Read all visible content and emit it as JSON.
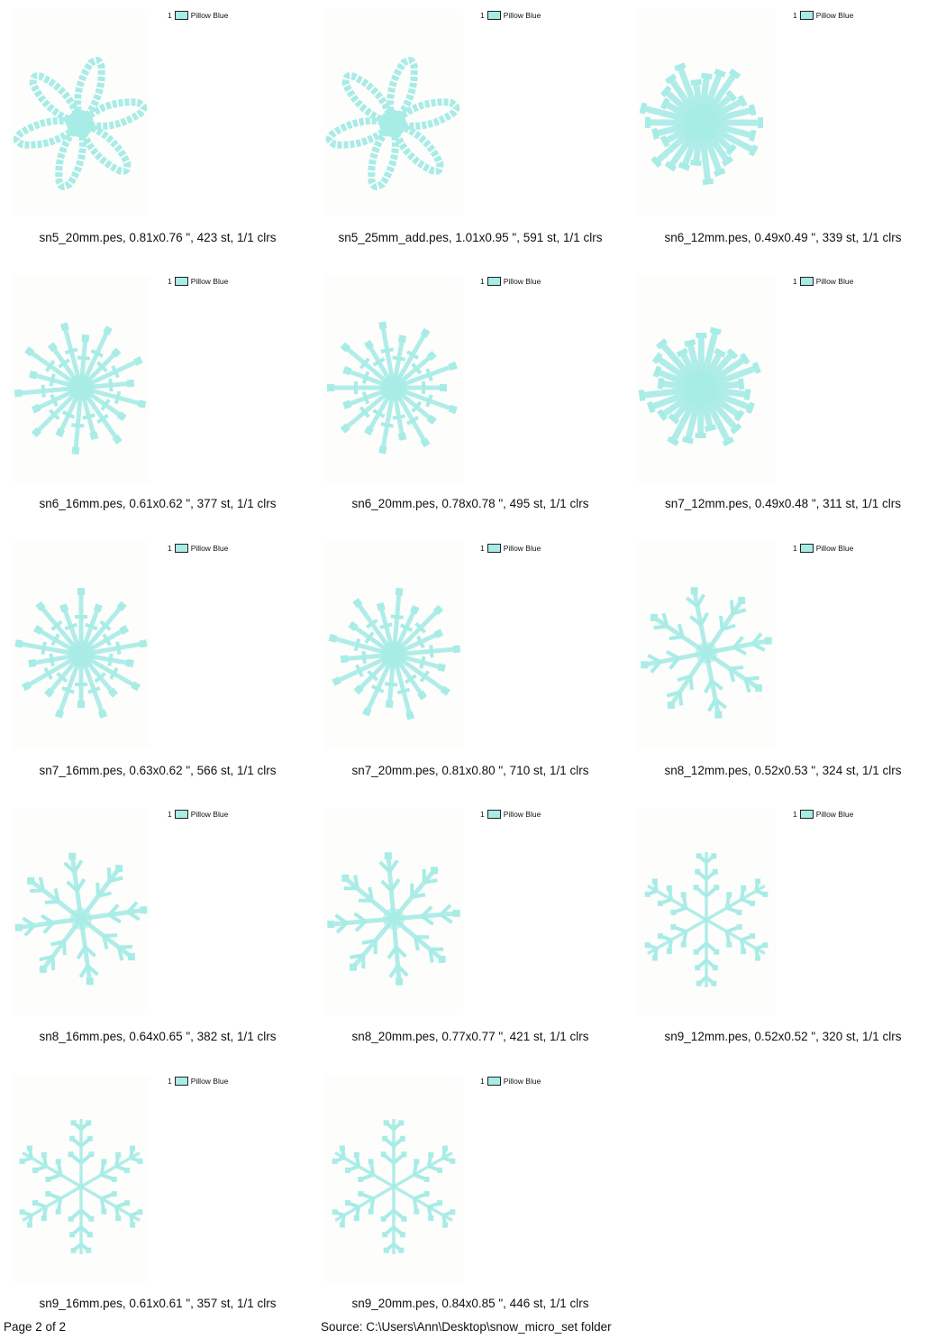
{
  "thread_color": "#a8ece6",
  "designs": [
    {
      "name": "sn5_20mm.pes",
      "caption": "sn5_20mm.pes, 0.81x0.76 \", 423 st, 1/1 clrs",
      "legend_index": "1",
      "legend_label": "Pillow Blue",
      "style": "petal"
    },
    {
      "name": "sn5_25mm_add.pes",
      "caption": "sn5_25mm_add.pes, 1.01x0.95 \", 591 st, 1/1 clrs",
      "legend_index": "1",
      "legend_label": "Pillow Blue",
      "style": "petal"
    },
    {
      "name": "sn6_12mm.pes",
      "caption": "sn6_12mm.pes, 0.49x0.49 \", 339 st, 1/1 clrs",
      "legend_index": "1",
      "legend_label": "Pillow Blue",
      "style": "dense"
    },
    {
      "name": "sn6_16mm.pes",
      "caption": "sn6_16mm.pes, 0.61x0.62 \", 377 st, 1/1 clrs",
      "legend_index": "1",
      "legend_label": "Pillow Blue",
      "style": "burst"
    },
    {
      "name": "sn6_20mm.pes",
      "caption": "sn6_20mm.pes, 0.78x0.78 \", 495 st, 1/1 clrs",
      "legend_index": "1",
      "legend_label": "Pillow Blue",
      "style": "burst"
    },
    {
      "name": "sn7_12mm.pes",
      "caption": "sn7_12mm.pes, 0.49x0.48 \", 311 st, 1/1 clrs",
      "legend_index": "1",
      "legend_label": "Pillow Blue",
      "style": "dense"
    },
    {
      "name": "sn7_16mm.pes",
      "caption": "sn7_16mm.pes, 0.63x0.62 \", 566 st, 1/1 clrs",
      "legend_index": "1",
      "legend_label": "Pillow Blue",
      "style": "burst"
    },
    {
      "name": "sn7_20mm.pes",
      "caption": "sn7_20mm.pes, 0.81x0.80 \", 710 st, 1/1 clrs",
      "legend_index": "1",
      "legend_label": "Pillow Blue",
      "style": "burst"
    },
    {
      "name": "sn8_12mm.pes",
      "caption": "sn8_12mm.pes, 0.52x0.53 \", 324 st, 1/1 clrs",
      "legend_index": "1",
      "legend_label": "Pillow Blue",
      "style": "branch"
    },
    {
      "name": "sn8_16mm.pes",
      "caption": "sn8_16mm.pes, 0.64x0.65 \", 382 st, 1/1 clrs",
      "legend_index": "1",
      "legend_label": "Pillow Blue",
      "style": "branch"
    },
    {
      "name": "sn8_20mm.pes",
      "caption": "sn8_20mm.pes, 0.77x0.77 \", 421 st, 1/1 clrs",
      "legend_index": "1",
      "legend_label": "Pillow Blue",
      "style": "branch"
    },
    {
      "name": "sn9_12mm.pes",
      "caption": "sn9_12mm.pes, 0.52x0.52 \", 320 st, 1/1 clrs",
      "legend_index": "1",
      "legend_label": "Pillow Blue",
      "style": "fern"
    },
    {
      "name": "sn9_16mm.pes",
      "caption": "sn9_16mm.pes, 0.61x0.61 \", 357 st, 1/1 clrs",
      "legend_index": "1",
      "legend_label": "Pillow Blue",
      "style": "fern"
    },
    {
      "name": "sn9_20mm.pes",
      "caption": "sn9_20mm.pes, 0.84x0.85 \", 446 st, 1/1 clrs",
      "legend_index": "1",
      "legend_label": "Pillow Blue",
      "style": "fern"
    }
  ],
  "footer": {
    "page": "Page 2 of 2",
    "source": "Source: C:\\Users\\Ann\\Desktop\\snow_micro_set folder"
  }
}
